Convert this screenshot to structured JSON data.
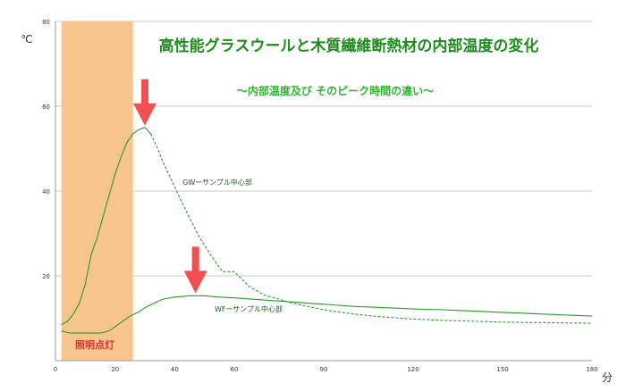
{
  "chart_data": {
    "type": "line",
    "title": "高性能グラスウールと木質繊維断熱材の内部温度の変化",
    "subtitle": "～内部温度及び そのピーク時間の違い～",
    "ylabel": "℃",
    "xlabel": "分",
    "xlim": [
      0,
      180
    ],
    "ylim": [
      0,
      80
    ],
    "x_ticks": [
      0,
      20,
      40,
      60,
      90,
      120,
      150,
      180
    ],
    "y_ticks": [
      20,
      40,
      60,
      80
    ],
    "x_tick_labels": [
      "0",
      "20",
      "40",
      "60",
      "90",
      "120",
      "150",
      "180"
    ],
    "y_tick_labels": [
      "20",
      "40",
      "60",
      "80"
    ],
    "grid": {
      "horizontal": true,
      "vertical": false
    },
    "highlight": {
      "label": "照明点灯",
      "x_start": 2,
      "x_end": 26,
      "color": "#f8c58f"
    },
    "arrows": [
      {
        "x": 30,
        "y_tip": 55,
        "color": "#f05050"
      },
      {
        "x": 47,
        "y_tip": 15.5,
        "color": "#f05050"
      }
    ],
    "series": [
      {
        "name": "GWーサンプル中心部",
        "color": "#2a9a2a",
        "dashed_after_x": 33,
        "label_at": {
          "x": 58,
          "y": 42
        },
        "x": [
          2,
          4,
          6,
          8,
          10,
          12,
          14,
          16,
          18,
          20,
          22,
          24,
          26,
          28,
          30,
          32,
          34,
          36,
          40,
          44,
          48,
          52,
          56,
          60,
          65,
          70,
          80,
          90,
          100,
          110,
          120,
          130,
          140,
          150,
          160,
          170,
          180
        ],
        "values": [
          8.5,
          9.2,
          11.0,
          13.5,
          18.0,
          25.0,
          29.0,
          34.0,
          39.0,
          44.0,
          48.0,
          51.5,
          53.5,
          54.5,
          55.0,
          53.5,
          50.5,
          47.0,
          41.0,
          35.0,
          29.5,
          25.0,
          21.0,
          21.0,
          17.5,
          15.5,
          13.5,
          12.0,
          11.0,
          10.3,
          9.8,
          9.5,
          9.3,
          9.1,
          9.0,
          8.9,
          8.8
        ]
      },
      {
        "name": "WFーサンプル中心部",
        "color": "#2a9a2a",
        "dashed_after_x": null,
        "label_at": {
          "x": 58,
          "y": 12.5
        },
        "x": [
          2,
          5,
          10,
          15,
          18,
          20,
          22,
          25,
          28,
          30,
          33,
          36,
          40,
          45,
          50,
          55,
          60,
          70,
          80,
          90,
          100,
          110,
          120,
          130,
          140,
          150,
          160,
          170,
          180
        ],
        "values": [
          7.0,
          6.5,
          6.5,
          6.5,
          7.0,
          8.0,
          9.0,
          10.5,
          11.5,
          12.5,
          13.5,
          14.5,
          15.0,
          15.3,
          15.3,
          15.0,
          14.8,
          14.3,
          13.8,
          13.3,
          12.8,
          12.5,
          12.2,
          12.0,
          11.7,
          11.4,
          11.1,
          10.8,
          10.5
        ]
      }
    ]
  }
}
